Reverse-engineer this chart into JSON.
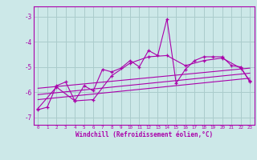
{
  "background_color": "#cce8e8",
  "grid_color": "#aacccc",
  "line_color": "#aa00aa",
  "xlabel": "Windchill (Refroidissement éolien,°C)",
  "ylim": [
    -7.3,
    -2.6
  ],
  "xlim": [
    -0.5,
    23.5
  ],
  "yticks": [
    -7,
    -6,
    -5,
    -4,
    -3
  ],
  "xticks": [
    0,
    1,
    2,
    3,
    4,
    5,
    6,
    7,
    8,
    9,
    10,
    11,
    12,
    13,
    14,
    15,
    16,
    17,
    18,
    19,
    20,
    21,
    22,
    23
  ],
  "series1": [
    [
      0,
      -6.7
    ],
    [
      1,
      -6.6
    ],
    [
      2,
      -5.75
    ],
    [
      3,
      -5.6
    ],
    [
      4,
      -6.35
    ],
    [
      5,
      -5.75
    ],
    [
      6,
      -5.95
    ],
    [
      7,
      -5.1
    ],
    [
      8,
      -5.2
    ],
    [
      9,
      -5.05
    ],
    [
      10,
      -4.75
    ],
    [
      11,
      -5.0
    ],
    [
      12,
      -4.35
    ],
    [
      13,
      -4.55
    ],
    [
      14,
      -3.1
    ],
    [
      15,
      -5.65
    ],
    [
      16,
      -5.1
    ],
    [
      17,
      -4.75
    ],
    [
      18,
      -4.6
    ],
    [
      19,
      -4.6
    ],
    [
      20,
      -4.6
    ],
    [
      21,
      -4.95
    ],
    [
      22,
      -5.0
    ],
    [
      23,
      -5.6
    ]
  ],
  "series2": [
    [
      0,
      -6.65
    ],
    [
      2,
      -5.8
    ],
    [
      4,
      -6.35
    ],
    [
      6,
      -6.3
    ],
    [
      8,
      -5.35
    ],
    [
      10,
      -4.85
    ],
    [
      12,
      -4.6
    ],
    [
      14,
      -4.55
    ],
    [
      16,
      -4.95
    ],
    [
      18,
      -4.75
    ],
    [
      20,
      -4.65
    ],
    [
      22,
      -5.05
    ],
    [
      23,
      -5.55
    ]
  ],
  "line_straight1": [
    [
      0,
      -6.3
    ],
    [
      23,
      -5.45
    ]
  ],
  "line_straight2": [
    [
      0,
      -6.1
    ],
    [
      23,
      -5.25
    ]
  ],
  "line_straight3": [
    [
      0,
      -5.85
    ],
    [
      23,
      -5.05
    ]
  ]
}
